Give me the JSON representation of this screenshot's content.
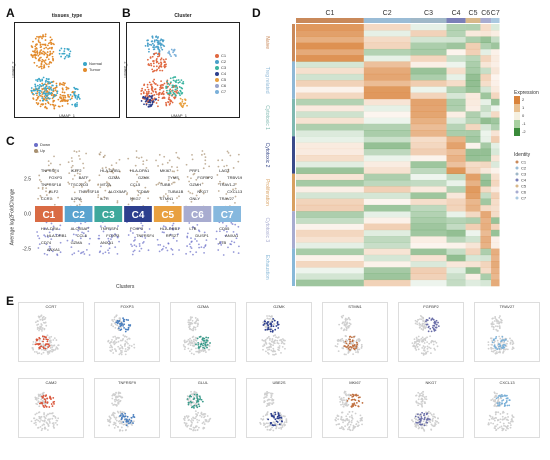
{
  "panels": {
    "A": {
      "letter": "A",
      "title": "tissues_type",
      "xlabel": "UMAP_1",
      "ylabel": "UMAP_2",
      "legend": [
        "Normal",
        "Tumor"
      ],
      "legend_colors": [
        "#3ba6c8",
        "#e28b2d"
      ]
    },
    "B": {
      "letter": "B",
      "title": "Cluster",
      "xlabel": "UMAP_1",
      "ylabel": "UMAP_2",
      "legend": [
        "C1",
        "C2",
        "C3",
        "C4",
        "C5",
        "C6",
        "C7"
      ],
      "legend_colors": [
        "#e06840",
        "#4aa0c9",
        "#3bb4a0",
        "#2d3f8e",
        "#e8a040",
        "#9aa3c9",
        "#7bb0d9"
      ]
    },
    "C": {
      "letter": "C",
      "xlabel": "Clusters",
      "ylabel": "Average log2FoldChange",
      "legend": [
        "Down",
        "Up"
      ],
      "legend_colors": [
        "#6a6ec8",
        "#a89070"
      ]
    },
    "D": {
      "letter": "D"
    },
    "E": {
      "letter": "E"
    }
  },
  "chart_data": {
    "type": "bar",
    "categories": [
      "C1",
      "C2",
      "C3",
      "C4",
      "C5",
      "C6",
      "C7"
    ],
    "colors": [
      "#d96b44",
      "#5aa3cf",
      "#3fa89c",
      "#2d3f8e",
      "#e8a040",
      "#a8acd0",
      "#86b8de"
    ],
    "yticks": [
      "2.5",
      "0.0",
      "-2.5"
    ],
    "ylim": [
      -4,
      6
    ],
    "up_labels": [
      [
        "CCR7",
        "KLF2",
        "TNFRSF18",
        "FOXP3",
        "TNFRSF4"
      ],
      [
        "IL2RA",
        "TNFRSF18",
        "TSC22D3",
        "BATF",
        "IKZF2"
      ],
      [
        "IL7R",
        "ALOX5AP",
        "MT2A",
        "GZMA",
        "HLA-DRB1"
      ],
      [
        "NKG7",
        "CD8A",
        "CCL5",
        "GZMK",
        "HLA-DPA1"
      ],
      [
        "STMN1",
        "TUBA1B",
        "TUBB",
        "TYMS",
        "MKI67"
      ],
      [
        "GNLY",
        "NKG7",
        "GZMH",
        "FGFBP2",
        "PRF1"
      ],
      [
        "TRAV27",
        "CXCL13",
        "TRAV1-2",
        "TRBV19",
        "LAG3"
      ]
    ],
    "down_labels": [
      [
        "HLA-DRA",
        "HLA-DRB1",
        "CD74",
        "ANXA1"
      ],
      [
        "ALOX5AP",
        "CCL5",
        "GZMA"
      ],
      [
        "TNFRSF4",
        "FOXP3",
        "ANXA1"
      ],
      [
        "FOXP3",
        "TNFRSF4"
      ],
      [
        "HLA-DRB1",
        "RPS27"
      ],
      [
        "LTB",
        "DUSP1"
      ],
      [
        "CD55",
        "ANXA1",
        "LTB"
      ]
    ]
  },
  "heatmap": {
    "columns": [
      "C1",
      "C2",
      "C3",
      "C4",
      "C5",
      "C6",
      "C7"
    ],
    "column_colors": [
      "#c9895a",
      "#9abcd6",
      "#a0b8c8",
      "#7a7fb8",
      "#d8b88a",
      "#a8acd0",
      "#aac8e0"
    ],
    "column_widths": [
      0.32,
      0.22,
      0.17,
      0.09,
      0.07,
      0.05,
      0.04
    ],
    "row_groups": [
      {
        "label": "Naive",
        "color": "#c9895a"
      },
      {
        "label": "Treg related",
        "color": "#8fb8d6"
      },
      {
        "label": "Cytotoxic 1",
        "color": "#7fb8b0"
      },
      {
        "label": "Cytotoxic 2",
        "color": "#3a4a8a"
      },
      {
        "label": "Proliferation",
        "color": "#d8a060"
      },
      {
        "label": "Cytotoxic 3",
        "color": "#a8acd0"
      },
      {
        "label": "Exhaustion",
        "color": "#88b8d8"
      }
    ],
    "legend_title": "Expression",
    "legend_ticks": [
      "2",
      "1",
      "0",
      "-1",
      "-2"
    ],
    "identity_title": "Identity",
    "identity_items": [
      "C1",
      "C2",
      "C3",
      "C4",
      "C5",
      "C6",
      "C7"
    ]
  },
  "features": [
    {
      "gene": "CCR7",
      "color": "#d9553a"
    },
    {
      "gene": "FOXP3",
      "color": "#4a7fbf"
    },
    {
      "gene": "GZMA",
      "color": "#3a9a8a"
    },
    {
      "gene": "GZMK",
      "color": "#2d3f8e"
    },
    {
      "gene": "STMN1",
      "color": "#c07040"
    },
    {
      "gene": "FGFBP2",
      "color": "#6a6ea8"
    },
    {
      "gene": "TRAV27",
      "color": "#7ab0d8"
    },
    {
      "gene": "CAM2",
      "color": "#d9553a"
    },
    {
      "gene": "TNFRSF9",
      "color": "#4a7fbf"
    },
    {
      "gene": "GLUL",
      "color": "#3a9a8a"
    },
    {
      "gene": "UBE2S",
      "color": "#2d3f8e"
    },
    {
      "gene": "MKI67",
      "color": "#c07040"
    },
    {
      "gene": "NKG7",
      "color": "#6a6ea8"
    },
    {
      "gene": "CXCL13",
      "color": "#7ab0d8"
    }
  ]
}
